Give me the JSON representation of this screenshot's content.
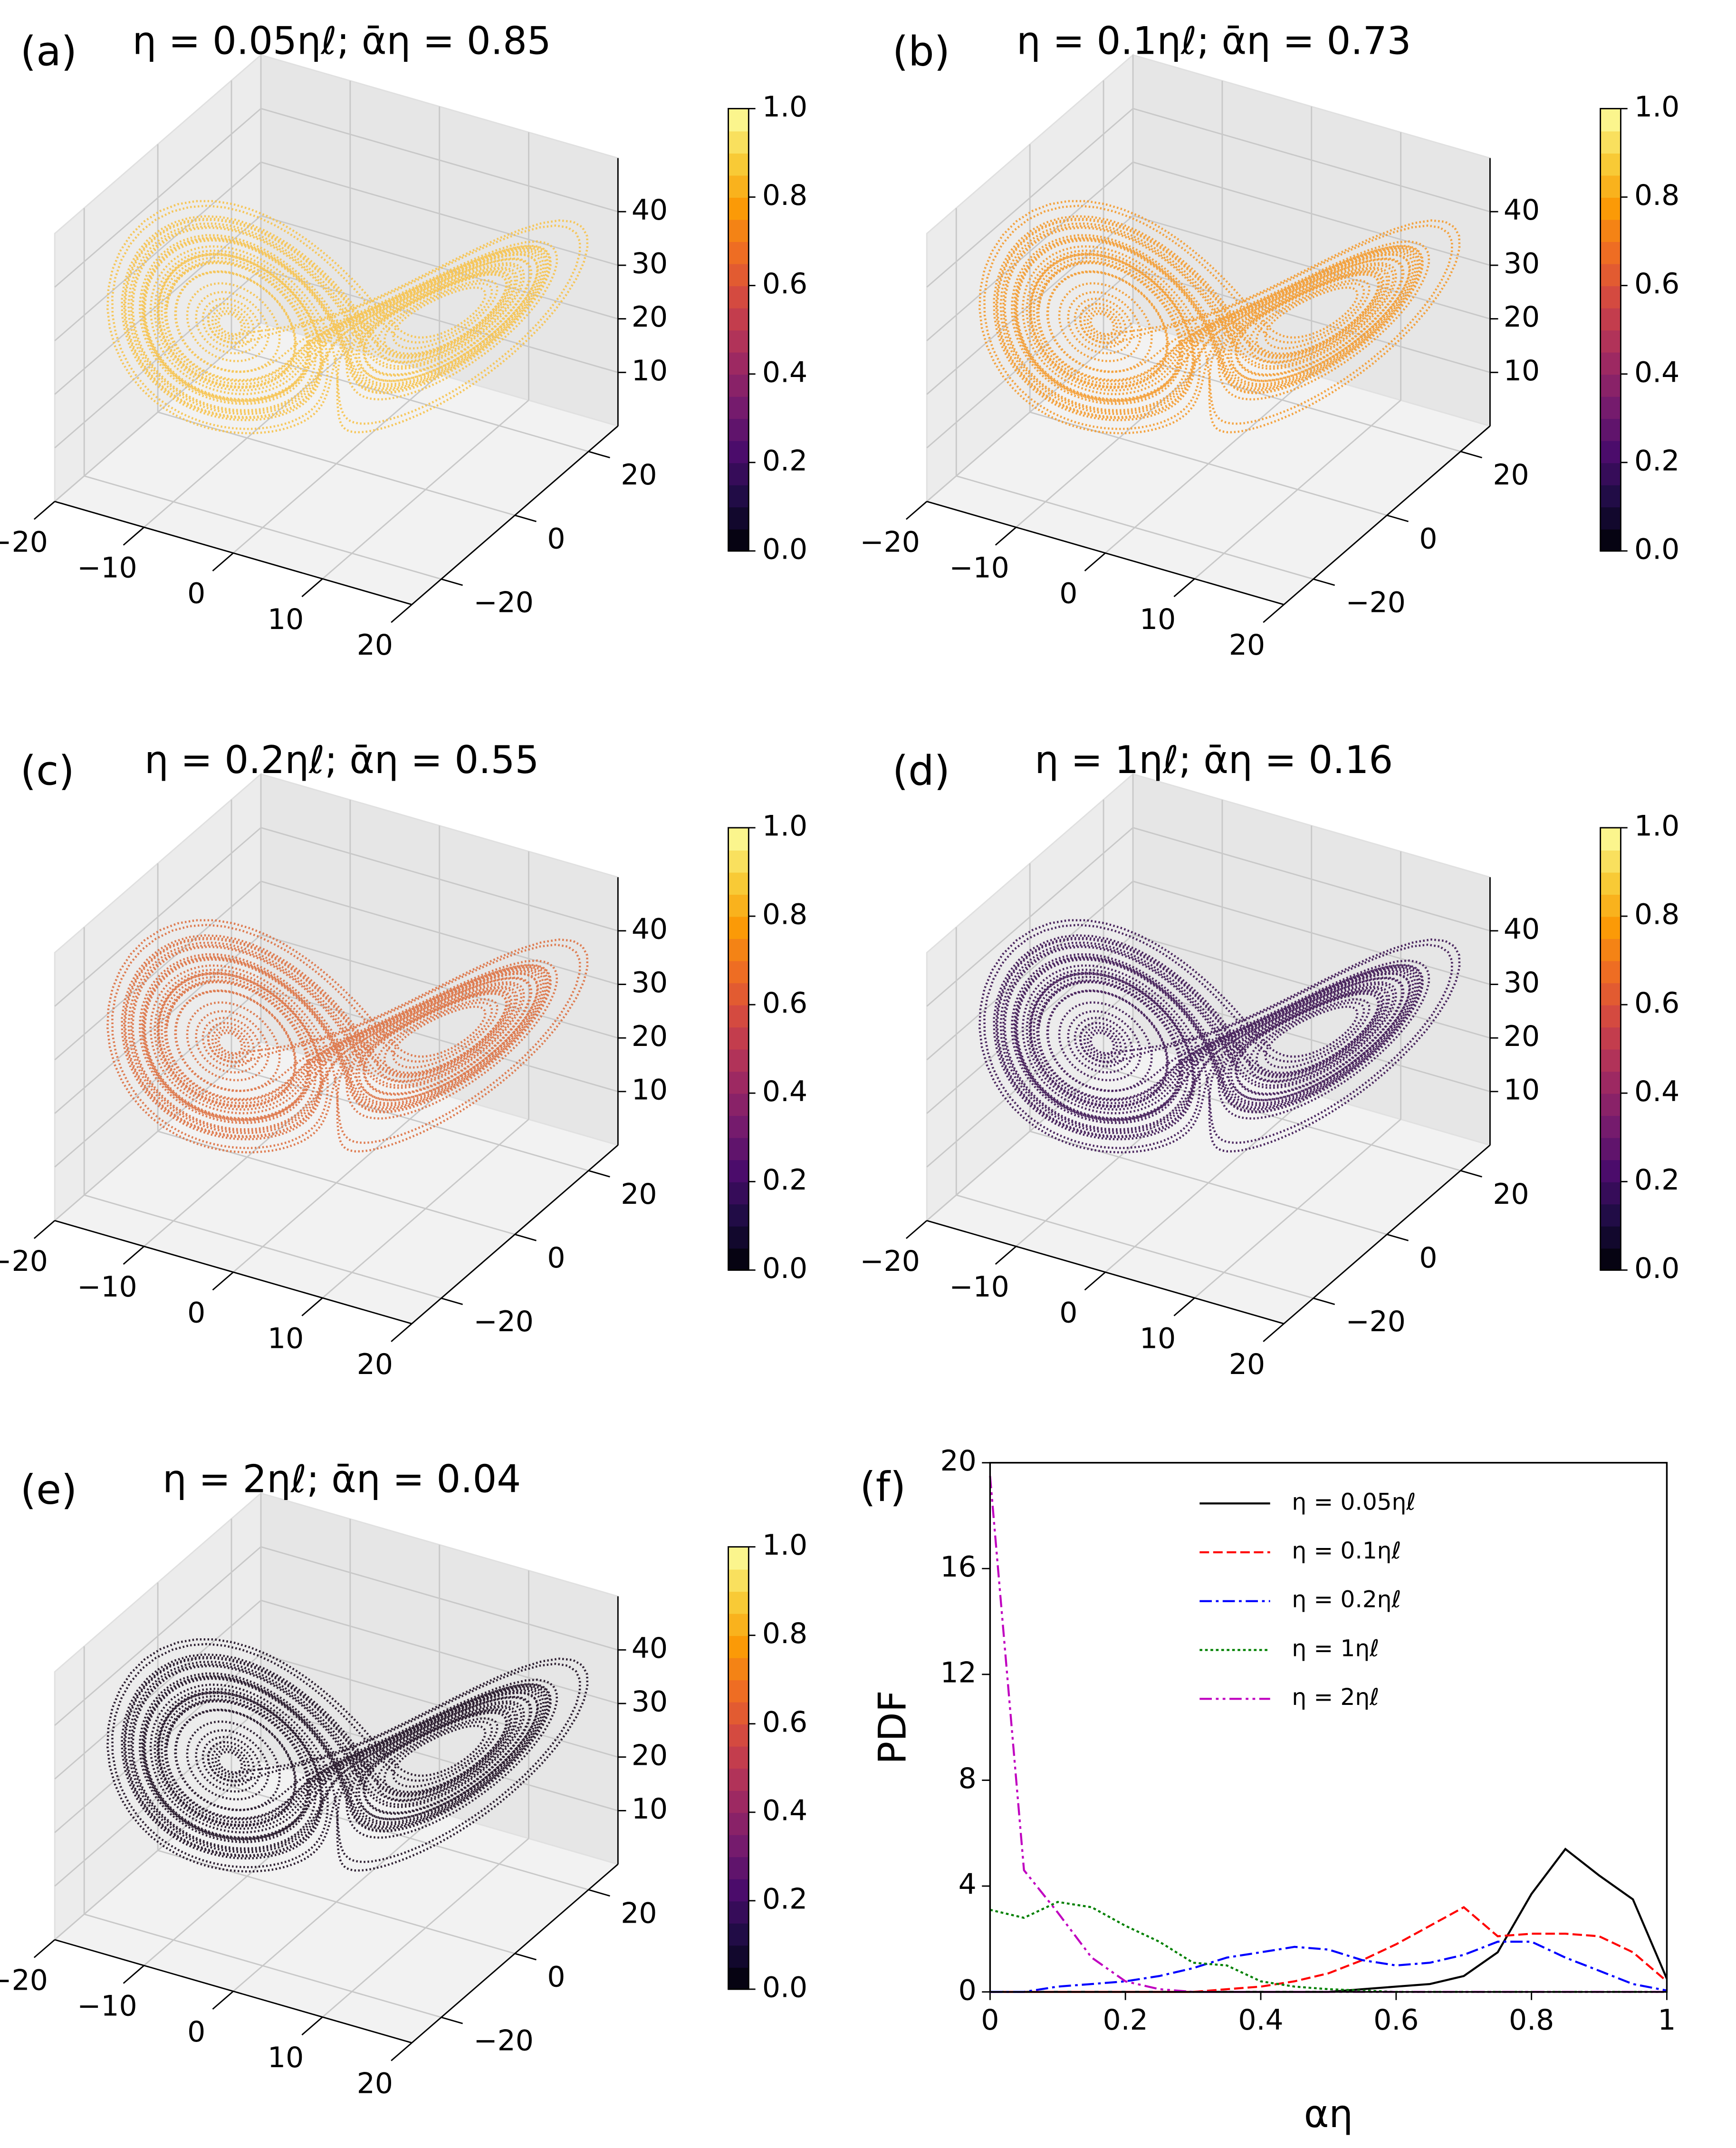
{
  "chart_data": [
    {
      "type": "scatter3d",
      "panel_label": "(a)",
      "title": "η = 0.05ηℓ; ᾱη = 0.85",
      "color": "#f7c24a",
      "xlim": [
        -20,
        20
      ],
      "ylim": [
        -28,
        28
      ],
      "zlim": [
        0,
        50
      ],
      "xticks": [
        {
          "value": -20,
          "label": "−20"
        },
        {
          "value": -10,
          "label": "−10"
        },
        0,
        10,
        20
      ],
      "yticks": [
        {
          "value": -20,
          "label": "−20"
        },
        0,
        20
      ],
      "zticks": [
        10,
        20,
        30,
        40
      ],
      "colorbar": {
        "lim": [
          0,
          1
        ],
        "ticks": [
          {
            "value": 0,
            "label": "0.0"
          },
          0.2,
          0.4,
          0.6,
          0.8,
          {
            "value": 1,
            "label": "1.0"
          }
        ],
        "colormap": [
          "#000004",
          "#1b0c41",
          "#4a0c6b",
          "#781c6d",
          "#a52c60",
          "#cf4446",
          "#ed6925",
          "#fb9b06",
          "#f7d13d",
          "#fcffa4"
        ]
      }
    },
    {
      "type": "scatter3d",
      "panel_label": "(b)",
      "title": "η = 0.1ηℓ; ᾱη = 0.73",
      "color": "#f49a2c",
      "xlim": [
        -20,
        20
      ],
      "ylim": [
        -28,
        28
      ],
      "zlim": [
        0,
        50
      ],
      "xticks": [
        {
          "value": -20,
          "label": "−20"
        },
        {
          "value": -10,
          "label": "−10"
        },
        0,
        10,
        20
      ],
      "yticks": [
        {
          "value": -20,
          "label": "−20"
        },
        0,
        20
      ],
      "zticks": [
        10,
        20,
        30,
        40
      ],
      "colorbar": {
        "lim": [
          0,
          1
        ],
        "ticks": [
          {
            "value": 0,
            "label": "0.0"
          },
          0.2,
          0.4,
          0.6,
          0.8,
          {
            "value": 1,
            "label": "1.0"
          }
        ],
        "colormap": [
          "#000004",
          "#1b0c41",
          "#4a0c6b",
          "#781c6d",
          "#a52c60",
          "#cf4446",
          "#ed6925",
          "#fb9b06",
          "#f7d13d",
          "#fcffa4"
        ]
      }
    },
    {
      "type": "scatter3d",
      "panel_label": "(c)",
      "title": "η = 0.2ηℓ; ᾱη = 0.55",
      "color": "#dd7040",
      "xlim": [
        -20,
        20
      ],
      "ylim": [
        -28,
        28
      ],
      "zlim": [
        0,
        50
      ],
      "xticks": [
        {
          "value": -20,
          "label": "−20"
        },
        {
          "value": -10,
          "label": "−10"
        },
        0,
        10,
        20
      ],
      "yticks": [
        {
          "value": -20,
          "label": "−20"
        },
        0,
        20
      ],
      "zticks": [
        10,
        20,
        30,
        40
      ],
      "colorbar": {
        "lim": [
          0,
          1
        ],
        "ticks": [
          {
            "value": 0,
            "label": "0.0"
          },
          0.2,
          0.4,
          0.6,
          0.8,
          {
            "value": 1,
            "label": "1.0"
          }
        ],
        "colormap": [
          "#000004",
          "#1b0c41",
          "#4a0c6b",
          "#781c6d",
          "#a52c60",
          "#cf4446",
          "#ed6925",
          "#fb9b06",
          "#f7d13d",
          "#fcffa4"
        ]
      }
    },
    {
      "type": "scatter3d",
      "panel_label": "(d)",
      "title": "η = 1ηℓ; ᾱη = 0.16",
      "color": "#3a1150",
      "xlim": [
        -20,
        20
      ],
      "ylim": [
        -28,
        28
      ],
      "zlim": [
        0,
        50
      ],
      "xticks": [
        {
          "value": -20,
          "label": "−20"
        },
        {
          "value": -10,
          "label": "−10"
        },
        0,
        10,
        20
      ],
      "yticks": [
        {
          "value": -20,
          "label": "−20"
        },
        0,
        20
      ],
      "zticks": [
        10,
        20,
        30,
        40
      ],
      "colorbar": {
        "lim": [
          0,
          1
        ],
        "ticks": [
          {
            "value": 0,
            "label": "0.0"
          },
          0.2,
          0.4,
          0.6,
          0.8,
          {
            "value": 1,
            "label": "1.0"
          }
        ],
        "colormap": [
          "#000004",
          "#1b0c41",
          "#4a0c6b",
          "#781c6d",
          "#a52c60",
          "#cf4446",
          "#ed6925",
          "#fb9b06",
          "#f7d13d",
          "#fcffa4"
        ]
      }
    },
    {
      "type": "scatter3d",
      "panel_label": "(e)",
      "title": "η = 2ηℓ; ᾱη = 0.04",
      "color": "#1a0a1e",
      "xlim": [
        -20,
        20
      ],
      "ylim": [
        -28,
        28
      ],
      "zlim": [
        0,
        50
      ],
      "xticks": [
        {
          "value": -20,
          "label": "−20"
        },
        {
          "value": -10,
          "label": "−10"
        },
        0,
        10,
        20
      ],
      "yticks": [
        {
          "value": -20,
          "label": "−20"
        },
        0,
        20
      ],
      "zticks": [
        10,
        20,
        30,
        40
      ],
      "colorbar": {
        "lim": [
          0,
          1
        ],
        "ticks": [
          {
            "value": 0,
            "label": "0.0"
          },
          0.2,
          0.4,
          0.6,
          0.8,
          {
            "value": 1,
            "label": "1.0"
          }
        ],
        "colormap": [
          "#000004",
          "#1b0c41",
          "#4a0c6b",
          "#781c6d",
          "#a52c60",
          "#cf4446",
          "#ed6925",
          "#fb9b06",
          "#f7d13d",
          "#fcffa4"
        ]
      }
    },
    {
      "type": "line",
      "panel_label": "(f)",
      "xlabel": "αη",
      "ylabel": "PDF",
      "x": [
        0,
        0.05,
        0.1,
        0.15,
        0.2,
        0.25,
        0.3,
        0.35,
        0.4,
        0.45,
        0.5,
        0.55,
        0.6,
        0.65,
        0.7,
        0.75,
        0.8,
        0.85,
        0.9,
        0.95,
        1
      ],
      "xlim": [
        0,
        1
      ],
      "ylim": [
        0,
        20
      ],
      "xticks": [
        0,
        0.2,
        0.4,
        0.6,
        0.8,
        1
      ],
      "yticks": [
        0,
        4,
        8,
        12,
        16,
        20
      ],
      "legend": "upper center",
      "series": [
        {
          "name": "η = 0.05ηℓ",
          "color": "#000000",
          "linestyle": "solid",
          "values": [
            0,
            0,
            0,
            0,
            0,
            0,
            0,
            0,
            0,
            0,
            0,
            0.1,
            0.2,
            0.3,
            0.6,
            1.5,
            3.7,
            5.4,
            4.4,
            3.5,
            0.5
          ]
        },
        {
          "name": "η = 0.1ηℓ",
          "color": "#ff0000",
          "linestyle": "dashed",
          "values": [
            0,
            0,
            0,
            0,
            0,
            0,
            0,
            0.1,
            0.2,
            0.4,
            0.7,
            1.2,
            1.8,
            2.5,
            3.2,
            2.1,
            2.2,
            2.2,
            2.1,
            1.5,
            0.4
          ]
        },
        {
          "name": "η = 0.2ηℓ",
          "color": "#0000ff",
          "linestyle": "dashdot",
          "values": [
            0,
            0,
            0.2,
            0.3,
            0.4,
            0.6,
            0.9,
            1.3,
            1.5,
            1.7,
            1.6,
            1.2,
            1.0,
            1.1,
            1.4,
            1.9,
            1.9,
            1.3,
            0.8,
            0.3,
            0.05
          ]
        },
        {
          "name": "η = 1ηℓ",
          "color": "#008000",
          "linestyle": "dotted",
          "values": [
            3.1,
            2.8,
            3.4,
            3.2,
            2.5,
            1.9,
            1.1,
            1.0,
            0.4,
            0.2,
            0.1,
            0.05,
            0,
            0,
            0,
            0,
            0,
            0,
            0,
            0,
            0
          ]
        },
        {
          "name": "η = 2ηℓ",
          "color": "#c000c0",
          "linestyle": "dashdotdot",
          "values": [
            19.5,
            4.6,
            3.0,
            1.3,
            0.4,
            0.1,
            0,
            0,
            0,
            0,
            0,
            0,
            0,
            0,
            0,
            0,
            0,
            0,
            0,
            0,
            0
          ]
        }
      ]
    }
  ]
}
